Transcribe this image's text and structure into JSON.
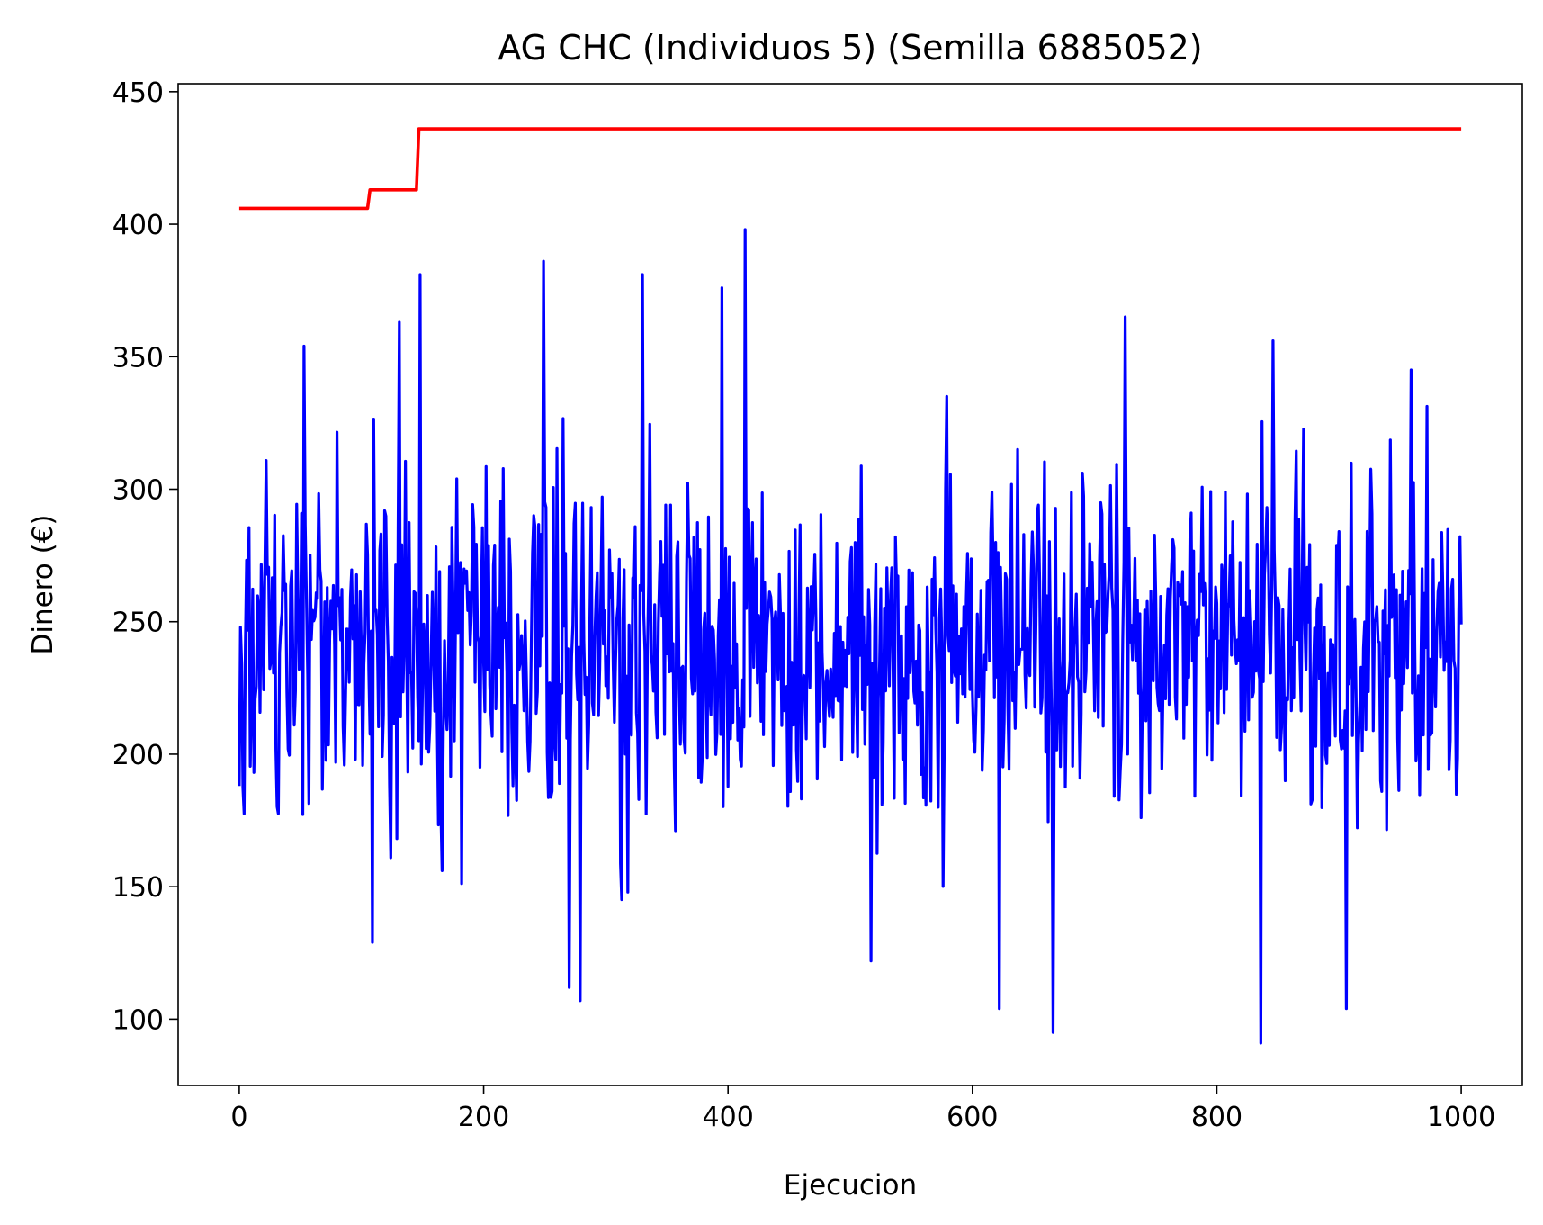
{
  "chart_data": {
    "type": "line",
    "title": "AG CHC (Individuos 5) (Semilla 6885052)",
    "xlabel": "Ejecucion",
    "ylabel": "Dinero (€)",
    "xlim": [
      -50,
      1050
    ],
    "ylim": [
      75,
      453
    ],
    "xticks": [
      0,
      200,
      400,
      600,
      800,
      1000
    ],
    "yticks": [
      100,
      150,
      200,
      250,
      300,
      350,
      400,
      450
    ],
    "grid": false,
    "legend": "none",
    "series": [
      {
        "color": "#ff0000",
        "kind": "step",
        "x": [
          0,
          105,
          107,
          145,
          147,
          1000
        ],
        "y": [
          406,
          406,
          413,
          413,
          436,
          436
        ]
      },
      {
        "color": "#0000ff",
        "kind": "noisy",
        "x_start": 0,
        "x_end": 1000,
        "y_start": 188,
        "y_end": 249,
        "approx_mean": 240,
        "approx_spread": 45,
        "peaks": [
          [
            53,
            354
          ],
          [
            131,
            363
          ],
          [
            148,
            381
          ],
          [
            249,
            386
          ],
          [
            330,
            381
          ],
          [
            414,
            398
          ],
          [
            395,
            376
          ],
          [
            725,
            365
          ],
          [
            846,
            356
          ],
          [
            959,
            345
          ]
        ],
        "troughs": [
          [
            270,
            112
          ],
          [
            279,
            107
          ],
          [
            622,
            104
          ],
          [
            666,
            95
          ],
          [
            836,
            91
          ],
          [
            906,
            104
          ],
          [
            517,
            122
          ],
          [
            109,
            129
          ]
        ]
      }
    ]
  }
}
